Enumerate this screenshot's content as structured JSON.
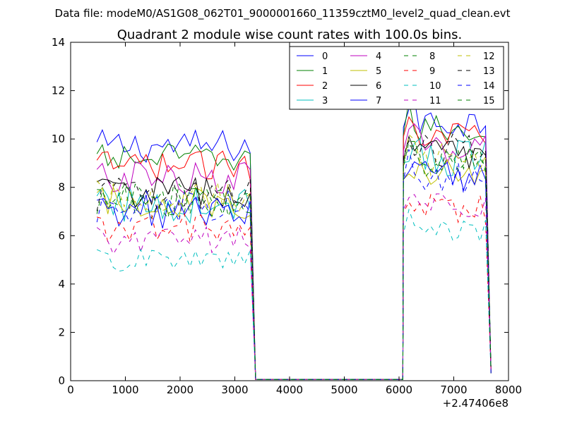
{
  "header": {
    "data_file": "Data file: modeM0/AS1G08_062T01_9000001660_11359cztM0_level2_quad_clean.evt"
  },
  "chart_data": {
    "type": "line",
    "title": "Quadrant 2 module wise count rates with 100.0s bins.",
    "xlabel": "",
    "ylabel": "",
    "x_offset_label": "+2.47406e8",
    "xlim": [
      0,
      8000
    ],
    "ylim": [
      0,
      14
    ],
    "xticks": [
      0,
      1000,
      2000,
      3000,
      4000,
      5000,
      6000,
      7000,
      8000
    ],
    "yticks": [
      0,
      2,
      4,
      6,
      8,
      10,
      12,
      14
    ],
    "grid": false,
    "legend_position": "top-right",
    "legend_columns": 4,
    "series": [
      {
        "name": "0",
        "color": "#0000ff",
        "dash": "solid",
        "base1": 9.7,
        "base2": 10.7,
        "amp": 0.35
      },
      {
        "name": "1",
        "color": "#008000",
        "dash": "solid",
        "base1": 9.2,
        "base2": 10.4,
        "amp": 0.3
      },
      {
        "name": "2",
        "color": "#ff0000",
        "dash": "solid",
        "base1": 8.9,
        "base2": 10.3,
        "amp": 0.3
      },
      {
        "name": "3",
        "color": "#00bfbf",
        "dash": "solid",
        "base1": 7.3,
        "base2": 9.2,
        "amp": 0.4
      },
      {
        "name": "4",
        "color": "#bf00bf",
        "dash": "solid",
        "base1": 8.4,
        "base2": 9.7,
        "amp": 0.35
      },
      {
        "name": "5",
        "color": "#bfbf00",
        "dash": "solid",
        "base1": 7.4,
        "base2": 8.5,
        "amp": 0.35
      },
      {
        "name": "6",
        "color": "#000000",
        "dash": "solid",
        "base1": 7.8,
        "base2": 9.3,
        "amp": 0.35
      },
      {
        "name": "7",
        "color": "#0000ff",
        "dash": "solid",
        "base1": 7.0,
        "base2": 8.5,
        "amp": 0.35
      },
      {
        "name": "8",
        "color": "#008000",
        "dash": "dashed",
        "base1": 7.4,
        "base2": 9.0,
        "amp": 0.35
      },
      {
        "name": "9",
        "color": "#ff0000",
        "dash": "dashed",
        "base1": 6.3,
        "base2": 7.1,
        "amp": 0.3
      },
      {
        "name": "10",
        "color": "#00bfbf",
        "dash": "dashed",
        "base1": 5.0,
        "base2": 6.2,
        "amp": 0.25
      },
      {
        "name": "11",
        "color": "#bf00bf",
        "dash": "dashed",
        "base1": 5.8,
        "base2": 7.2,
        "amp": 0.3
      },
      {
        "name": "12",
        "color": "#bfbf00",
        "dash": "dashed",
        "base1": 7.6,
        "base2": 9.1,
        "amp": 0.35
      },
      {
        "name": "13",
        "color": "#000000",
        "dash": "dashed",
        "base1": 7.7,
        "base2": 9.5,
        "amp": 0.35
      },
      {
        "name": "14",
        "color": "#0000ff",
        "dash": "dashed",
        "base1": 7.2,
        "base2": 8.4,
        "amp": 0.35
      },
      {
        "name": "15",
        "color": "#008000",
        "dash": "dashed",
        "base1": 7.5,
        "base2": 9.2,
        "amp": 0.35
      }
    ],
    "segments": [
      {
        "x_start": 480,
        "x_end": 3280
      },
      {
        "x_start": 6180,
        "x_end": 7580
      }
    ],
    "gap": {
      "x_drop_1": 3380,
      "x_rise_2": 6080,
      "x_final": 7680
    }
  }
}
